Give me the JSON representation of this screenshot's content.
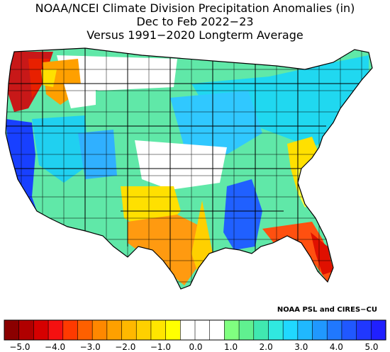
{
  "title": {
    "line1": "NOAA/NCEI Climate Division Precipitation Anomalies (in)",
    "line2": "Dec to Feb 2022−23",
    "line3": "Versus 1991−2020 Longterm Average"
  },
  "credit": "NOAA PSL and CIRES−CU",
  "colorbar": {
    "colors": [
      "#8b0000",
      "#b00000",
      "#d60000",
      "#f51010",
      "#ff3a00",
      "#ff6000",
      "#ff8800",
      "#ffa000",
      "#ffb800",
      "#ffd000",
      "#ffe600",
      "#ffff00",
      "#ffffff",
      "#ffffff",
      "#ffffff",
      "#80ff80",
      "#60f090",
      "#40e8b0",
      "#30e8e0",
      "#20d8ff",
      "#20b8ff",
      "#2098ff",
      "#2078ff",
      "#2058ff",
      "#2038ff",
      "#2020ff"
    ],
    "min": -5.0,
    "max": 5.0,
    "ticks": [
      {
        "value": -5.0,
        "label": "−5.0"
      },
      {
        "value": -4.0,
        "label": "−4.0"
      },
      {
        "value": -3.0,
        "label": "−3.0"
      },
      {
        "value": -2.0,
        "label": "−2.0"
      },
      {
        "value": -1.0,
        "label": "−1.0"
      },
      {
        "value": 0.0,
        "label": "0.0"
      },
      {
        "value": 1.0,
        "label": "1.0"
      },
      {
        "value": 2.0,
        "label": "2.0"
      },
      {
        "value": 3.0,
        "label": "3.0"
      },
      {
        "value": 4.0,
        "label": "4.0"
      },
      {
        "value": 5.0,
        "label": "5.0"
      }
    ]
  },
  "map": {
    "region": "contiguous-united-states",
    "colors": {
      "land_default": "#60e8a8",
      "dry_red": "#d80000",
      "dry_orange": "#ff8c00",
      "dry_yellow": "#ffe000",
      "neutral": "#ffffff",
      "wet_cyan": "#20d8f0",
      "wet_blue": "#2040ff",
      "border": "#000000"
    }
  }
}
